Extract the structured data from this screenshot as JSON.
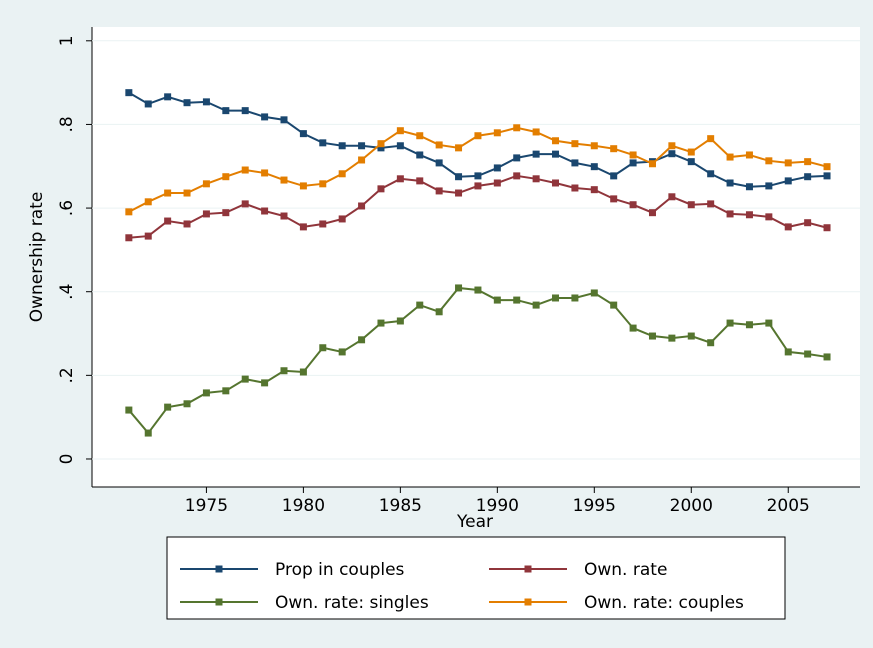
{
  "chart_data": {
    "type": "line",
    "x_label": "Year",
    "y_label": "Ownership rate",
    "x": [
      1971,
      1972,
      1973,
      1974,
      1975,
      1976,
      1977,
      1978,
      1979,
      1980,
      1981,
      1982,
      1983,
      1984,
      1985,
      1986,
      1987,
      1988,
      1989,
      1990,
      1991,
      1992,
      1993,
      1994,
      1995,
      1996,
      1997,
      1998,
      1999,
      2000,
      2001,
      2002,
      2003,
      2004,
      2005,
      2006,
      2007
    ],
    "series": [
      {
        "name": "Prop in couples",
        "color": "#1a476f",
        "values": [
          0.876,
          0.849,
          0.866,
          0.852,
          0.854,
          0.833,
          0.833,
          0.818,
          0.811,
          0.778,
          0.756,
          0.749,
          0.749,
          0.744,
          0.749,
          0.727,
          0.708,
          0.675,
          0.677,
          0.696,
          0.72,
          0.729,
          0.729,
          0.708,
          0.699,
          0.677,
          0.708,
          0.711,
          0.73,
          0.711,
          0.682,
          0.66,
          0.651,
          0.653,
          0.665,
          0.675,
          0.677
        ]
      },
      {
        "name": "Own. rate",
        "color": "#90353b",
        "values": [
          0.529,
          0.533,
          0.569,
          0.562,
          0.586,
          0.589,
          0.61,
          0.593,
          0.581,
          0.555,
          0.562,
          0.574,
          0.605,
          0.646,
          0.67,
          0.665,
          0.641,
          0.636,
          0.653,
          0.66,
          0.677,
          0.67,
          0.66,
          0.648,
          0.644,
          0.622,
          0.608,
          0.589,
          0.627,
          0.608,
          0.61,
          0.586,
          0.584,
          0.579,
          0.555,
          0.565,
          0.553
        ]
      },
      {
        "name": "Own. rate: singles",
        "color": "#55752f",
        "values": [
          0.117,
          0.062,
          0.124,
          0.132,
          0.158,
          0.163,
          0.191,
          0.182,
          0.211,
          0.208,
          0.266,
          0.256,
          0.285,
          0.325,
          0.33,
          0.368,
          0.352,
          0.409,
          0.404,
          0.38,
          0.38,
          0.368,
          0.385,
          0.385,
          0.397,
          0.368,
          0.313,
          0.294,
          0.289,
          0.294,
          0.278,
          0.325,
          0.321,
          0.325,
          0.256,
          0.251,
          0.244
        ]
      },
      {
        "name": "Own. rate: couples",
        "color": "#e37e00",
        "values": [
          0.591,
          0.615,
          0.636,
          0.636,
          0.658,
          0.675,
          0.691,
          0.684,
          0.667,
          0.653,
          0.658,
          0.682,
          0.715,
          0.754,
          0.785,
          0.773,
          0.751,
          0.744,
          0.773,
          0.78,
          0.792,
          0.782,
          0.761,
          0.754,
          0.749,
          0.742,
          0.727,
          0.706,
          0.749,
          0.734,
          0.766,
          0.722,
          0.727,
          0.713,
          0.708,
          0.711,
          0.699
        ]
      }
    ],
    "xlim": [
      1969.1,
      2008.7
    ],
    "xticks": [
      1975,
      1980,
      1985,
      1990,
      1995,
      2000,
      2005
    ],
    "ylim": [
      -0.067,
      1.033
    ],
    "yticks": [
      0,
      {
        "value": 0.2,
        "label": ".2"
      },
      {
        "value": 0.4,
        "label": ".4"
      },
      {
        "value": 0.6,
        "label": ".6"
      },
      {
        "value": 0.8,
        "label": ".8"
      },
      1
    ],
    "grid": true
  }
}
